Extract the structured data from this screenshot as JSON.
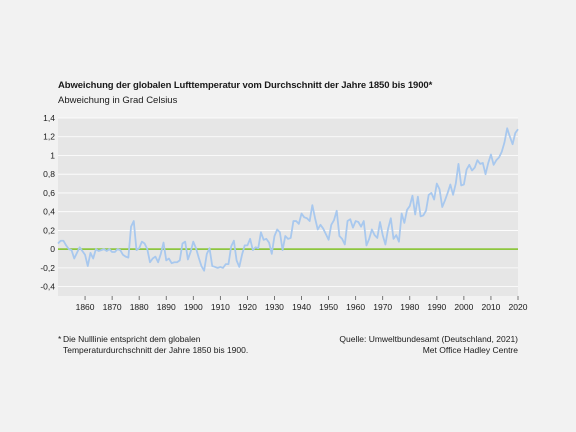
{
  "chart_data": {
    "type": "line",
    "title": "Abweichung der globalen Lufttemperatur vom Durchschnitt der Jahre 1850 bis 1900*",
    "subtitle": "Abweichung in Grad Celsius",
    "xlabel": "",
    "ylabel": "",
    "xlim": [
      1850,
      2020
    ],
    "ylim": [
      -0.5,
      1.4
    ],
    "yticks": [
      1.4,
      1.2,
      1,
      0.8,
      0.6,
      0.4,
      0.2,
      0,
      -0.2,
      -0.4
    ],
    "ytick_labels": [
      "1,4",
      "1,2",
      "1",
      "0,8",
      "0,6",
      "0,4",
      "0,2",
      "0",
      "-0,2",
      "-0,4"
    ],
    "xticks": [
      1860,
      1870,
      1880,
      1890,
      1900,
      1910,
      1920,
      1930,
      1940,
      1950,
      1960,
      1970,
      1980,
      1990,
      2000,
      2010,
      2020
    ],
    "grid": "horizontal",
    "zero_line_color": "#8dc63f",
    "line_color": "#a8c8ee",
    "background_color": "#e6e6e6",
    "series": [
      {
        "x": [
          1850,
          1851,
          1852,
          1853,
          1854,
          1855,
          1856,
          1857,
          1858,
          1859,
          1860,
          1861,
          1862,
          1863,
          1864,
          1865,
          1866,
          1867,
          1868,
          1869,
          1870,
          1871,
          1872,
          1873,
          1874,
          1875,
          1876,
          1877,
          1878,
          1879,
          1880,
          1881,
          1882,
          1883,
          1884,
          1885,
          1886,
          1887,
          1888,
          1889,
          1890,
          1891,
          1892,
          1893,
          1894,
          1895,
          1896,
          1897,
          1898,
          1899,
          1900,
          1901,
          1902,
          1903,
          1904,
          1905,
          1906,
          1907,
          1908,
          1909,
          1910,
          1911,
          1912,
          1913,
          1914,
          1915,
          1916,
          1917,
          1918,
          1919,
          1920,
          1921,
          1922,
          1923,
          1924,
          1925,
          1926,
          1927,
          1928,
          1929,
          1930,
          1931,
          1932,
          1933,
          1934,
          1935,
          1936,
          1937,
          1938,
          1939,
          1940,
          1941,
          1942,
          1943,
          1944,
          1945,
          1946,
          1947,
          1948,
          1949,
          1950,
          1951,
          1952,
          1953,
          1954,
          1955,
          1956,
          1957,
          1958,
          1959,
          1960,
          1961,
          1962,
          1963,
          1964,
          1965,
          1966,
          1967,
          1968,
          1969,
          1970,
          1971,
          1972,
          1973,
          1974,
          1975,
          1976,
          1977,
          1978,
          1979,
          1980,
          1981,
          1982,
          1983,
          1984,
          1985,
          1986,
          1987,
          1988,
          1989,
          1990,
          1991,
          1992,
          1993,
          1994,
          1995,
          1996,
          1997,
          1998,
          1999,
          2000,
          2001,
          2002,
          2003,
          2004,
          2005,
          2006,
          2007,
          2008,
          2009,
          2010,
          2011,
          2012,
          2013,
          2014,
          2015,
          2016,
          2017,
          2018,
          2019,
          2020
        ],
        "values": [
          0.06,
          0.09,
          0.09,
          0.04,
          0.0,
          -0.01,
          -0.1,
          -0.04,
          0.02,
          -0.02,
          -0.06,
          -0.18,
          -0.04,
          -0.1,
          0.0,
          -0.02,
          -0.01,
          0.0,
          -0.02,
          0.0,
          -0.03,
          -0.03,
          0.0,
          -0.01,
          -0.06,
          -0.08,
          -0.09,
          0.24,
          0.3,
          -0.01,
          0.01,
          0.08,
          0.06,
          0.0,
          -0.14,
          -0.1,
          -0.08,
          -0.14,
          -0.05,
          0.07,
          -0.12,
          -0.1,
          -0.15,
          -0.14,
          -0.14,
          -0.12,
          0.06,
          0.08,
          -0.11,
          -0.03,
          0.08,
          0.01,
          -0.09,
          -0.18,
          -0.23,
          -0.05,
          0.01,
          -0.18,
          -0.19,
          -0.2,
          -0.19,
          -0.2,
          -0.16,
          -0.16,
          0.03,
          0.09,
          -0.12,
          -0.19,
          -0.06,
          0.04,
          0.04,
          0.11,
          -0.01,
          0.02,
          0.01,
          0.18,
          0.1,
          0.11,
          0.07,
          -0.05,
          0.14,
          0.21,
          0.18,
          -0.01,
          0.14,
          0.11,
          0.12,
          0.3,
          0.3,
          0.27,
          0.38,
          0.34,
          0.33,
          0.3,
          0.47,
          0.33,
          0.21,
          0.26,
          0.22,
          0.16,
          0.1,
          0.26,
          0.31,
          0.41,
          0.14,
          0.11,
          0.05,
          0.3,
          0.32,
          0.23,
          0.3,
          0.29,
          0.24,
          0.3,
          0.04,
          0.11,
          0.21,
          0.15,
          0.12,
          0.29,
          0.15,
          0.05,
          0.22,
          0.33,
          0.11,
          0.15,
          0.08,
          0.38,
          0.28,
          0.42,
          0.46,
          0.57,
          0.37,
          0.56,
          0.35,
          0.36,
          0.41,
          0.58,
          0.6,
          0.53,
          0.7,
          0.64,
          0.45,
          0.52,
          0.6,
          0.69,
          0.58,
          0.7,
          0.91,
          0.68,
          0.69,
          0.85,
          0.9,
          0.84,
          0.87,
          0.95,
          0.91,
          0.92,
          0.8,
          0.92,
          1.01,
          0.9,
          0.95,
          0.98,
          1.04,
          1.14,
          1.29,
          1.2,
          1.12,
          1.24,
          1.28
        ]
      }
    ]
  },
  "footnote": {
    "star": "*",
    "line1": "Die Nulllinie entspricht dem globalen",
    "line2": "Temperaturdurchschnitt der Jahre 1850 bis 1900."
  },
  "source": {
    "line1": "Quelle: Umweltbundesamt (Deutschland, 2021)",
    "line2": "Met Office Hadley Centre"
  }
}
